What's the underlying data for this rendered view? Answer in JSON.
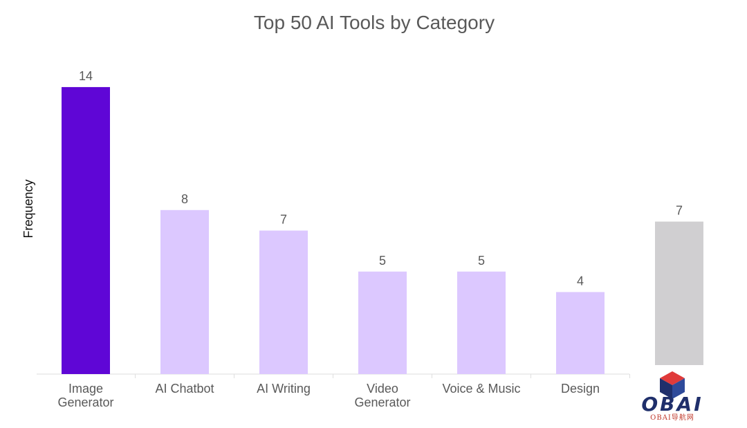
{
  "chart_data": {
    "type": "bar",
    "title": "Top 50 AI Tools by Category",
    "ylabel": "Frequency",
    "xlabel": "",
    "categories": [
      "Image\nGenerator",
      "AI Chatbot",
      "AI Writing",
      "Video\nGenerator",
      "Voice & Music",
      "Design",
      ""
    ],
    "values": [
      14,
      8,
      7,
      5,
      5,
      4,
      7
    ],
    "bar_colors": [
      "#5f06d6",
      "#dcc8ff",
      "#dcc8ff",
      "#dcc8ff",
      "#dcc8ff",
      "#dcc8ff",
      "#d0cfd1"
    ],
    "ylim": [
      0,
      14.2
    ],
    "grid": false,
    "legend": "none",
    "watermark": {
      "text": "OBAI",
      "subtext": "OBAI导航网",
      "colors": {
        "text": "#1f2f6b",
        "accent": "#e03a3a",
        "subtext": "#c0392b"
      }
    }
  }
}
